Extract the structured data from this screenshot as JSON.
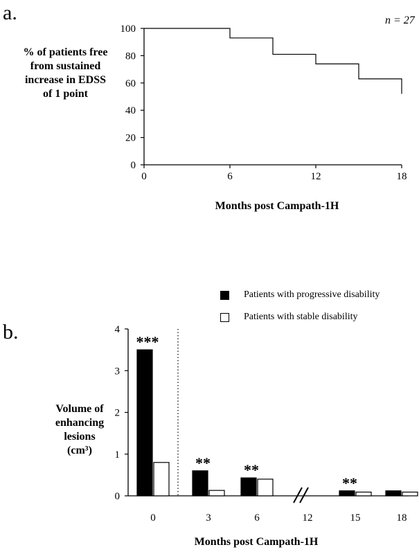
{
  "chart_data": [
    {
      "panel": "a.",
      "type": "line",
      "step": true,
      "n_label": "n = 27",
      "ylabel": [
        "% of patients free",
        "from sustained",
        "increase in EDSS",
        "of 1 point"
      ],
      "xlabel": "Months post Campath-1H",
      "xlim": [
        0,
        18
      ],
      "ylim": [
        0,
        100
      ],
      "xticks": [
        0,
        6,
        12,
        18
      ],
      "yticks": [
        0,
        20,
        40,
        60,
        80,
        100
      ],
      "series": [
        {
          "x": [
            0,
            6,
            9,
            12,
            15,
            18
          ],
          "y": [
            100,
            93,
            81,
            74,
            63,
            52
          ]
        }
      ]
    },
    {
      "panel": "b.",
      "type": "bar",
      "ylabel": [
        "Volume of",
        "enhancing",
        "lesions",
        "(cm³)"
      ],
      "xlabel": "Months post Campath-1H",
      "ylim": [
        0,
        4
      ],
      "yticks": [
        0,
        1,
        2,
        3,
        4
      ],
      "categories": [
        "0",
        "3",
        "6",
        "12",
        "15",
        "18"
      ],
      "axis_break_after_category": "6",
      "dotted_divider_after_category": "0",
      "series": [
        {
          "name": "Patients with progressive disability",
          "color": "#000000",
          "values": [
            3.5,
            0.6,
            0.43,
            null,
            0.12,
            0.12
          ]
        },
        {
          "name": "Patients with stable disability",
          "color": "#ffffff",
          "values": [
            0.8,
            0.13,
            0.4,
            null,
            0.09,
            0.09
          ]
        }
      ],
      "significance": [
        "***",
        "**",
        "**",
        "",
        "**",
        ""
      ]
    }
  ]
}
